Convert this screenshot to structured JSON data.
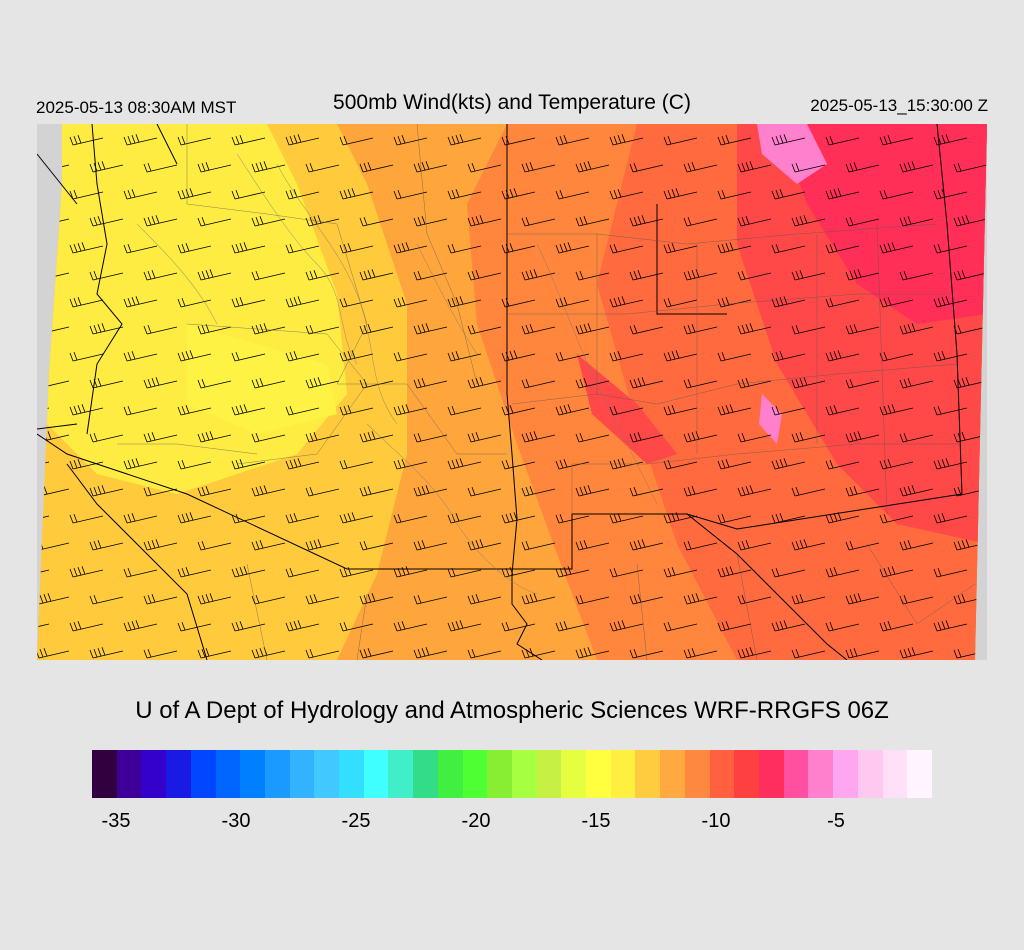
{
  "header": {
    "valid_local": "2025-05-13 08:30AM MST",
    "title": "500mb Wind(kts) and Temperature (C)",
    "valid_utc": "2025-05-13_15:30:00 Z"
  },
  "credit": "U of A Dept of Hydrology and Atmospheric Sciences WRF-RRGFS 06Z",
  "colorbar": {
    "colors": [
      "#33003f",
      "#3f0099",
      "#3300cc",
      "#1a1ae5",
      "#0047ff",
      "#0066ff",
      "#0080ff",
      "#1a99ff",
      "#33b3ff",
      "#40c8ff",
      "#33dfff",
      "#40ffff",
      "#40efc8",
      "#33dd88",
      "#40ef40",
      "#4dff33",
      "#88ee33",
      "#a6ff40",
      "#c6f043",
      "#e5ff40",
      "#ffff40",
      "#fff040",
      "#ffcc40",
      "#ffaa40",
      "#ff8840",
      "#ff6040",
      "#ff4040",
      "#ff2e5c",
      "#ff4fa0",
      "#ff80cc",
      "#ffa6f0",
      "#ffc8f0",
      "#ffe0f8",
      "#fff4ff"
    ],
    "ticks": [
      {
        "label": "-35",
        "value": -35
      },
      {
        "label": "-30",
        "value": -30
      },
      {
        "label": "-25",
        "value": -25
      },
      {
        "label": "-20",
        "value": -20
      },
      {
        "label": "-15",
        "value": -15
      },
      {
        "label": "-10",
        "value": -10
      },
      {
        "label": "-5",
        "value": -5
      }
    ],
    "range": [
      -36,
      -1
    ]
  },
  "map": {
    "region": "Southwestern United States (Arizona, New Mexico, Utah, Colorado, Nevada)",
    "field": "500mb temperature with wind barbs",
    "wind_dir": "west-southwest",
    "colors": {
      "background": "#d3d3d3",
      "yellow": "#fef244",
      "light_orange": "#ffcb3c",
      "orange": "#fea53c",
      "dark_orange": "#ff863c",
      "red_orange": "#ff6a3f",
      "red": "#ff4848",
      "crimson": "#ff2f57",
      "pink": "#ff80cc"
    }
  }
}
